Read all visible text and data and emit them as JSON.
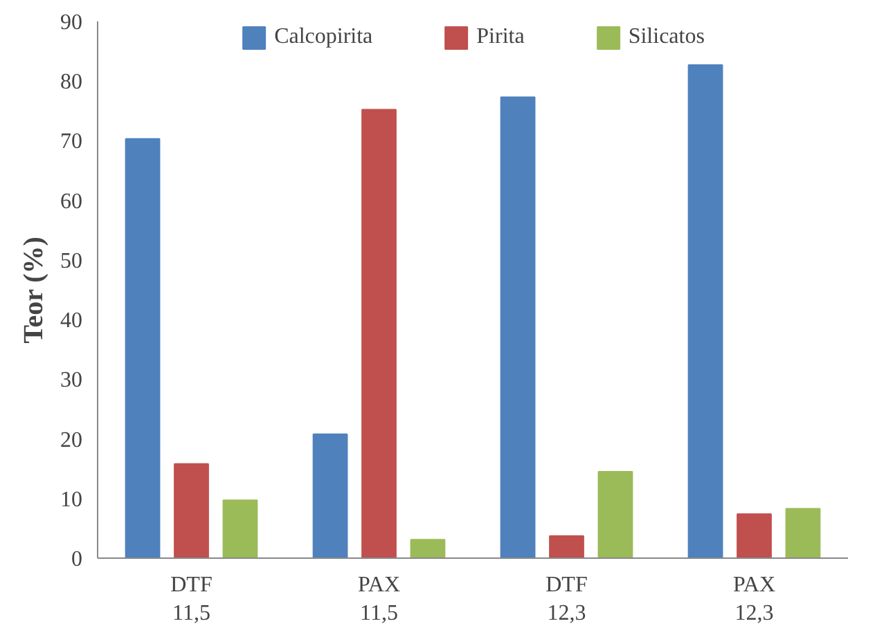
{
  "chart_data": {
    "type": "bar",
    "ylabel": "Teor (%)",
    "categories": [
      "DTF\n11,5",
      "PAX\n11,5",
      "DTF\n12,3",
      "PAX\n12,3"
    ],
    "series": [
      {
        "name": "Calcopirita",
        "color": "#4f81bd",
        "values": [
          70.3,
          20.8,
          77.3,
          82.7
        ]
      },
      {
        "name": "Pirita",
        "color": "#c0504d",
        "values": [
          15.8,
          75.2,
          3.7,
          7.4
        ]
      },
      {
        "name": "Silicatos",
        "color": "#9bbb59",
        "values": [
          9.7,
          3.1,
          14.5,
          8.3
        ]
      }
    ],
    "ylim": [
      0,
      90
    ],
    "yticks": [
      0,
      10,
      20,
      30,
      40,
      50,
      60,
      70,
      80,
      90
    ],
    "grid": false,
    "legend": "top"
  }
}
